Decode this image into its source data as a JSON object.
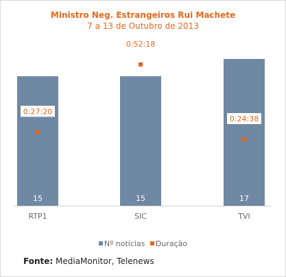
{
  "chart_data": {
    "type": "bar",
    "title": "Ministro Neg. Estrangeiros Rui Machete",
    "subtitle": "7 a 13 de Outubro de 2013",
    "categories": [
      "RTP1",
      "SIC",
      "TVI"
    ],
    "series": [
      {
        "name": "Nº notícias",
        "values": [
          15,
          15,
          17
        ],
        "color": "#6f88a3"
      },
      {
        "name": "Duração",
        "values": [
          "0:27:20",
          "0:52:18",
          "0:24:38"
        ],
        "color": "#e8671a",
        "marker": "square"
      }
    ],
    "legend_position": "bottom",
    "grid": false
  },
  "source": {
    "label": "Fonte:",
    "text": "MediaMonitor, Telenews"
  }
}
